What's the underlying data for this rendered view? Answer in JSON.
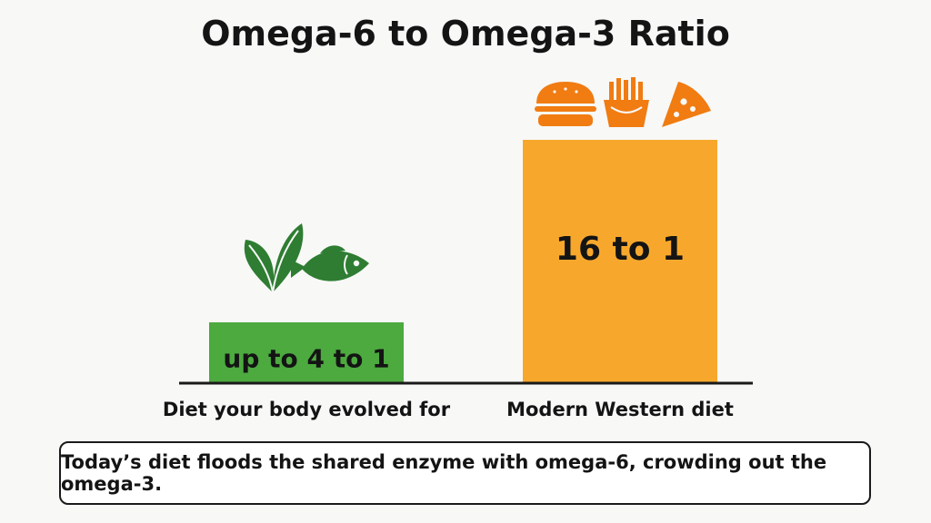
{
  "chart_data": {
    "type": "bar",
    "title": "Omega-6 to Omega-3 Ratio",
    "categories": [
      "Diet your body evolved for",
      "Modern Western diet"
    ],
    "values": [
      4,
      16
    ],
    "data_labels": [
      "up to 4 to 1",
      "16 to 1"
    ],
    "ylim": [
      0,
      16
    ],
    "grid": false,
    "legend": "none",
    "colors": [
      "#4caa3f",
      "#f7a82c"
    ]
  },
  "icons": {
    "evolved": [
      "leaf-icon",
      "fish-icon"
    ],
    "modern": [
      "burger-icon",
      "fries-icon",
      "pizza-icon"
    ],
    "icon_colors": {
      "green": "#2e7d32",
      "orange": "#f07c12"
    }
  },
  "callout": {
    "text": "Today’s diet floods the shared enzyme with omega-6, crowding out the omega-3."
  }
}
